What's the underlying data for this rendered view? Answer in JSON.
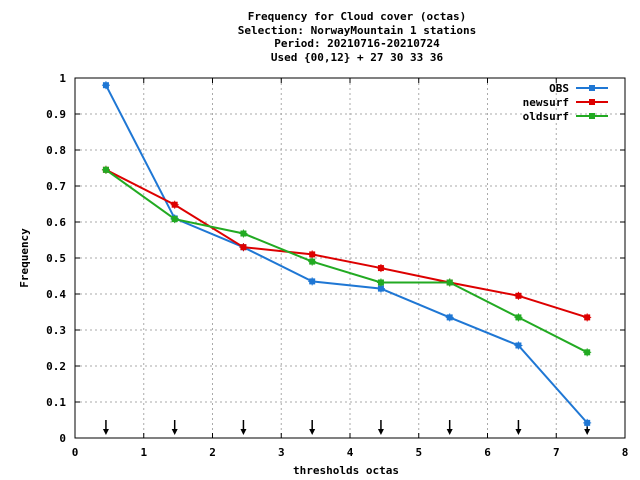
{
  "title": {
    "line1": "Frequency  for Cloud cover (octas)",
    "line2": "Selection: NorwayMountain      1 stations",
    "line3": "Period: 20210716-20210724",
    "line4": "Used {00,12} + 27 30 33 36"
  },
  "chart_data": {
    "type": "line",
    "xlabel": "thresholds octas",
    "ylabel": "Frequency",
    "xlim": [
      0,
      8
    ],
    "ylim": [
      0,
      1
    ],
    "xticks": [
      "0",
      "1",
      "2",
      "3",
      "4",
      "5",
      "6",
      "7",
      "8"
    ],
    "yticks": [
      "0",
      "0.1",
      "0.2",
      "0.3",
      "0.4",
      "0.5",
      "0.6",
      "0.7",
      "0.8",
      "0.9",
      "1"
    ],
    "grid": true,
    "legend_position": "top-right",
    "x": [
      0.45,
      1.45,
      2.45,
      3.45,
      4.45,
      5.45,
      6.45,
      7.45
    ],
    "series": [
      {
        "name": "OBS",
        "color": "#1f77d4",
        "values": [
          0.98,
          0.61,
          0.53,
          0.435,
          0.415,
          0.335,
          0.257,
          0.042
        ]
      },
      {
        "name": "newsurf",
        "color": "#dd0000",
        "values": [
          0.745,
          0.648,
          0.53,
          0.51,
          0.472,
          0.432,
          0.395,
          0.335
        ]
      },
      {
        "name": "oldsurf",
        "color": "#22aa22",
        "values": [
          0.745,
          0.608,
          0.568,
          0.49,
          0.432,
          0.432,
          0.335,
          0.238
        ]
      }
    ],
    "threshold_markers_x": [
      0.45,
      1.45,
      2.45,
      3.45,
      4.45,
      5.45,
      6.45,
      7.45
    ]
  }
}
